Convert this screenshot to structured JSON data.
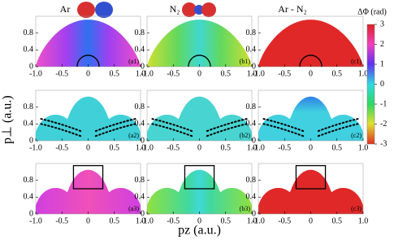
{
  "chart_data": [
    {
      "type": "heatmap",
      "title": "Ar",
      "label": "(a1)",
      "xlim": [
        -1,
        1
      ],
      "ylim": [
        0,
        1.2
      ],
      "xticks": [
        {
          "value": -1,
          "label": "-1.0"
        },
        -0.5,
        0,
        0.5,
        {
          "value": 1,
          "label": "1.0"
        }
      ],
      "yticks": [
        0,
        0.4,
        0.8
      ]
    },
    {
      "type": "heatmap",
      "title": "N₂",
      "label": "(b1)",
      "xlim": [
        -1,
        1
      ],
      "ylim": [
        0,
        1.2
      ],
      "xticks": [
        {
          "value": -1,
          "label": "-1.0"
        },
        -0.5,
        0,
        0.5,
        {
          "value": 1,
          "label": "1.0"
        }
      ],
      "yticks": [
        0,
        0.4,
        0.8
      ]
    },
    {
      "type": "heatmap",
      "title": "Ar - N₂",
      "label": "(c1)",
      "xlim": [
        -1,
        1
      ],
      "ylim": [
        0,
        1.2
      ],
      "xticks": [
        {
          "value": -1,
          "label": "-1.0"
        },
        -0.5,
        0,
        0.5,
        {
          "value": 1,
          "label": "1.0"
        }
      ],
      "yticks": [
        0,
        0.4,
        0.8
      ]
    },
    {
      "type": "heatmap",
      "ylabel": "p⊥ (a.u.)",
      "label": "(a2)",
      "xlim": [
        -1,
        1
      ],
      "ylim": [
        0,
        1.2
      ],
      "xticks": [
        {
          "value": -1,
          "label": "-1.0"
        },
        -0.5,
        0,
        0.5,
        {
          "value": 1,
          "label": "1.0"
        }
      ],
      "yticks": [
        0,
        0.4,
        0.8
      ]
    },
    {
      "type": "heatmap",
      "label": "(b2)",
      "xlim": [
        -1,
        1
      ],
      "ylim": [
        0,
        1.2
      ],
      "xticks": [
        {
          "value": -1,
          "label": "-1.0"
        },
        -0.5,
        0,
        0.5,
        {
          "value": 1,
          "label": "1.0"
        }
      ],
      "yticks": [
        0,
        0.4,
        0.8
      ]
    },
    {
      "type": "heatmap",
      "label": "(c2)",
      "xlim": [
        -1,
        1
      ],
      "ylim": [
        0,
        1.2
      ],
      "xticks": [
        {
          "value": -1,
          "label": "-1.0"
        },
        -0.5,
        0,
        0.5,
        {
          "value": 1,
          "label": "1.0"
        }
      ],
      "yticks": [
        0,
        0.4,
        0.8
      ]
    },
    {
      "type": "heatmap",
      "label": "(a3)",
      "xlim": [
        -1,
        1
      ],
      "ylim": [
        0,
        1.2
      ],
      "xticks": [
        {
          "value": -1,
          "label": "-1.0"
        },
        -0.5,
        0,
        0.5,
        {
          "value": 1,
          "label": "1.0"
        }
      ],
      "yticks": [
        0,
        0.4,
        0.8
      ]
    },
    {
      "type": "heatmap",
      "xlabel": "pz (a.u.)",
      "label": "(b3)",
      "xlim": [
        -1,
        1
      ],
      "ylim": [
        0,
        1.2
      ],
      "xticks": [
        {
          "value": -1,
          "label": "-1.0"
        },
        -0.5,
        0,
        0.5,
        {
          "value": 1,
          "label": "1.0"
        }
      ],
      "yticks": [
        0,
        0.4,
        0.8
      ]
    },
    {
      "type": "heatmap",
      "label": "(c3)",
      "xlim": [
        -1,
        1
      ],
      "ylim": [
        0,
        1.2
      ],
      "xticks": [
        {
          "value": -1,
          "label": "-1.0"
        },
        -0.5,
        0,
        0.5,
        {
          "value": 1,
          "label": "1.0"
        }
      ],
      "yticks": [
        0,
        0.4,
        0.8
      ]
    },
    {
      "type": "colorbar",
      "title": "ΔΦ (rad)",
      "ylim": [
        -3,
        3
      ],
      "yticks": [
        -3,
        -2,
        -1,
        0,
        1,
        2,
        3
      ]
    }
  ]
}
